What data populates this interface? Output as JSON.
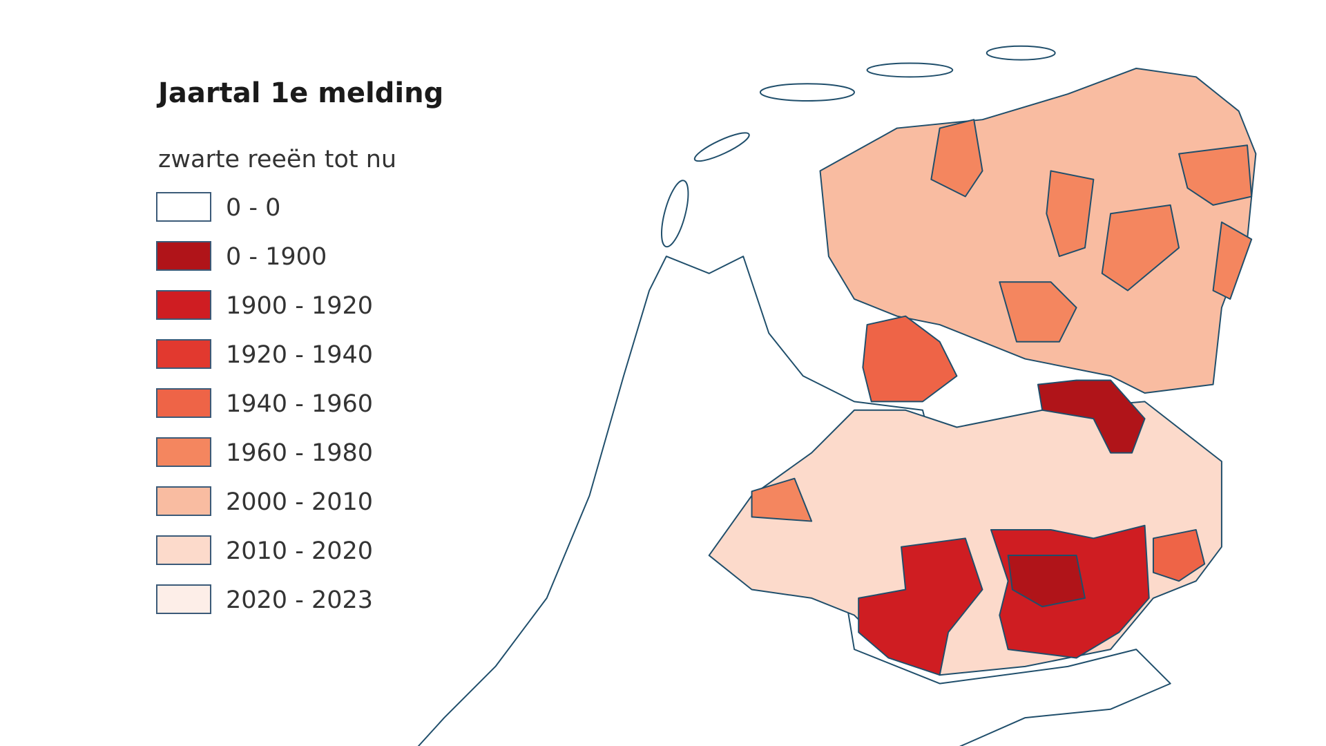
{
  "legend": {
    "title": "Jaartal 1e melding",
    "subtitle": "zwarte reeën tot nu",
    "items": [
      {
        "label": "0 - 0",
        "color": "#ffffff"
      },
      {
        "label": "0 - 1900",
        "color": "#b01419"
      },
      {
        "label": "1900 - 1920",
        "color": "#cf1d22"
      },
      {
        "label": "1920 - 1940",
        "color": "#e2392f"
      },
      {
        "label": "1940 - 1960",
        "color": "#ee6447"
      },
      {
        "label": "1960 - 1980",
        "color": "#f4865f"
      },
      {
        "label": "2000 - 2010",
        "color": "#f9bca1"
      },
      {
        "label": "2010 - 2020",
        "color": "#fcdacb"
      },
      {
        "label": "2020 - 2023",
        "color": "#fdeee8"
      }
    ]
  }
}
